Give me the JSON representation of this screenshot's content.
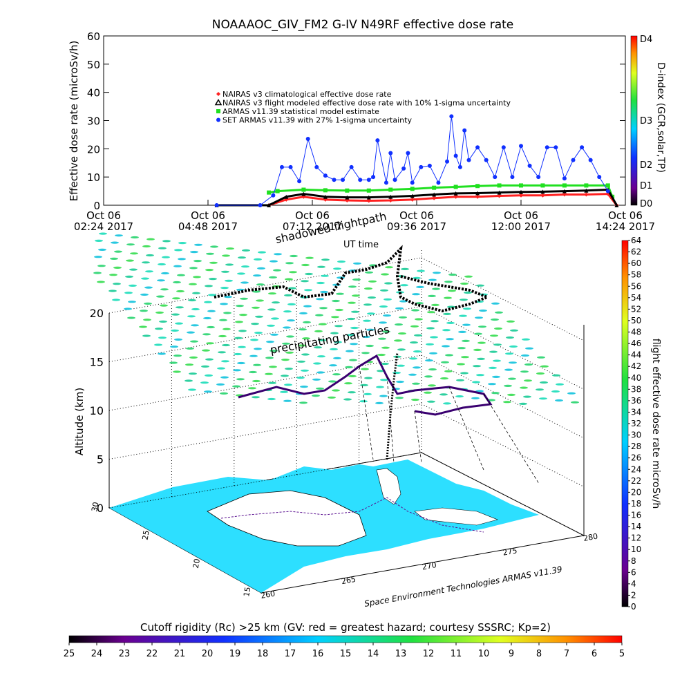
{
  "chart_data": [
    {
      "type": "scatter",
      "title": "NOAAAOC_GIV_FM2 G-IV   N49RF  effective dose rate",
      "ylabel": "Effective dose rate (microSv/h)",
      "ylim": [
        0,
        60
      ],
      "yticks": [
        "0",
        "10",
        "20",
        "30",
        "40",
        "50",
        "60"
      ],
      "xticks": [
        {
          "date": "Oct 06",
          "time": "02:24 2017"
        },
        {
          "date": "Oct 06",
          "time": "04:48 2017"
        },
        {
          "date": "Oct 06",
          "time": "07:12 2017"
        },
        {
          "date": "Oct 06",
          "time": "09:36 2017"
        },
        {
          "date": "Oct 06",
          "time": "12:00 2017"
        },
        {
          "date": "Oct 06",
          "time": "14:24 2017"
        }
      ],
      "xrange_hours": [
        2.4,
        14.4
      ],
      "legend": [
        {
          "label": "NAIRAS v3 climatological effective dose rate",
          "color": "#ff2020",
          "marker": "diamond"
        },
        {
          "label": "NAIRAS v3 flight modeled effective dose rate with 10% 1-sigma uncertainty",
          "color": "#000000",
          "marker": "triangle"
        },
        {
          "label": "ARMAS v11.39 statistical model estimate",
          "color": "#20e020",
          "marker": "asterisk"
        },
        {
          "label": "SET ARMAS v11.39 with 27% 1-sigma uncertainty",
          "color": "#1030ff",
          "marker": "circle"
        }
      ],
      "series": [
        {
          "name": "NAIRAS v3 climatological effective dose rate",
          "color": "#ff2020",
          "x": [
            5.0,
            6.2,
            6.6,
            7.0,
            7.5,
            8.0,
            8.5,
            9.0,
            9.5,
            10.0,
            10.5,
            11.0,
            11.5,
            12.0,
            12.5,
            13.0,
            13.5,
            14.0,
            14.2
          ],
          "y": [
            0,
            0,
            2.0,
            3.0,
            2.0,
            1.7,
            1.6,
            1.7,
            2.0,
            2.5,
            3.0,
            3.0,
            3.3,
            3.5,
            3.5,
            3.8,
            3.8,
            4.0,
            0
          ]
        },
        {
          "name": "NAIRAS v3 flight modeled effective dose rate with 10% 1-sigma uncertainty",
          "color": "#000000",
          "x": [
            5.0,
            6.2,
            6.6,
            7.0,
            7.5,
            8.0,
            8.5,
            9.0,
            9.5,
            10.0,
            10.5,
            11.0,
            11.5,
            12.0,
            12.5,
            13.0,
            13.5,
            14.0,
            14.2
          ],
          "y": [
            0,
            0,
            3.0,
            4.0,
            3.0,
            2.8,
            2.8,
            3.0,
            3.3,
            3.8,
            4.2,
            4.3,
            4.5,
            4.7,
            4.8,
            5.0,
            5.2,
            5.5,
            0
          ]
        },
        {
          "name": "ARMAS v11.39 statistical model estimate",
          "color": "#20e020",
          "x": [
            6.2,
            6.4,
            7.0,
            7.5,
            8.0,
            8.5,
            9.0,
            9.5,
            10.0,
            10.5,
            11.0,
            11.5,
            12.0,
            12.5,
            13.0,
            13.5,
            14.0,
            14.1
          ],
          "y": [
            4.5,
            5.0,
            5.5,
            5.3,
            5.2,
            5.2,
            5.5,
            5.8,
            6.2,
            6.5,
            6.8,
            7.0,
            7.0,
            7.0,
            7.0,
            7.0,
            7.0,
            3.0
          ]
        },
        {
          "name": "SET ARMAS v11.39 with 27% 1-sigma uncertainty",
          "color": "#1030ff",
          "x": [
            5.0,
            6.0,
            6.3,
            6.5,
            6.7,
            6.9,
            7.1,
            7.3,
            7.5,
            7.7,
            7.9,
            8.1,
            8.3,
            8.5,
            8.6,
            8.7,
            8.9,
            9.0,
            9.1,
            9.3,
            9.4,
            9.5,
            9.7,
            9.9,
            10.1,
            10.3,
            10.4,
            10.5,
            10.6,
            10.7,
            10.8,
            11.0,
            11.2,
            11.4,
            11.6,
            11.8,
            12.0,
            12.2,
            12.4,
            12.6,
            12.8,
            13.0,
            13.2,
            13.4,
            13.6,
            13.8,
            14.0
          ],
          "y": [
            0,
            0,
            3.5,
            13.5,
            13.5,
            8.5,
            23.5,
            13.5,
            10.5,
            9.0,
            9.0,
            13.5,
            9.0,
            9.0,
            10.0,
            23.0,
            8.0,
            18.5,
            9.0,
            13.0,
            18.5,
            8.0,
            13.5,
            14.0,
            8.0,
            15.5,
            31.5,
            17.5,
            13.5,
            26.5,
            16.0,
            20.5,
            16.0,
            10.0,
            20.5,
            10.0,
            21.0,
            14.0,
            10.0,
            20.5,
            20.5,
            9.5,
            16.0,
            20.5,
            16.0,
            10.0,
            5.0
          ]
        }
      ],
      "dindex_bar": {
        "label": "D-index (GCR,solar,TP)",
        "ticks": [
          "D0",
          "D1",
          "D2",
          "D3",
          "D4"
        ]
      }
    },
    {
      "type": "3d-map",
      "zlabel": "Altitude (km)",
      "zticks": [
        "0",
        "5",
        "10",
        "15",
        "20"
      ],
      "lat_ticks": [
        "30",
        "25",
        "20",
        "15"
      ],
      "lon_ticks": [
        "260",
        "265",
        "270",
        "275",
        "280"
      ],
      "annotations": [
        "shadowed flightpath",
        "UT time",
        "precipitating particles"
      ],
      "credit": "Space Environment Technologies ARMAS v11.39",
      "dose_colorbar": {
        "label": "flight effective dose rate microSv/h",
        "ticks": [
          "0",
          "2",
          "4",
          "6",
          "8",
          "10",
          "12",
          "14",
          "16",
          "18",
          "20",
          "22",
          "24",
          "26",
          "28",
          "30",
          "32",
          "34",
          "36",
          "38",
          "40",
          "42",
          "44",
          "46",
          "48",
          "50",
          "52",
          "54",
          "56",
          "58",
          "60",
          "62",
          "64"
        ]
      }
    },
    {
      "type": "colorbar",
      "title": "Cutoff rigidity (Rc) >25 km (GV: red = greatest hazard; courtesy SSSRC; Kp=2)",
      "ticks": [
        "25",
        "24",
        "23",
        "22",
        "21",
        "20",
        "19",
        "18",
        "17",
        "16",
        "15",
        "14",
        "13",
        "12",
        "11",
        "10",
        "9",
        "8",
        "7",
        "6",
        "5"
      ]
    }
  ]
}
